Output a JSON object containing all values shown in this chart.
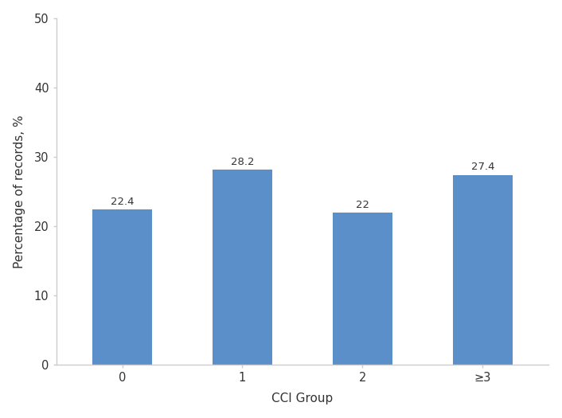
{
  "categories": [
    "0",
    "1",
    "2",
    "≥3"
  ],
  "values": [
    22.4,
    28.2,
    22.0,
    27.4
  ],
  "bar_color": "#5b8fc9",
  "bar_edgecolor": "none",
  "xlabel": "CCI Group",
  "ylabel": "Percentage of records, %",
  "ylim": [
    0,
    50
  ],
  "yticks": [
    0,
    10,
    20,
    30,
    40,
    50
  ],
  "label_fontsize": 11,
  "tick_fontsize": 10.5,
  "value_label_fontsize": 9.5,
  "background_color": "#ffffff",
  "bar_width": 0.5,
  "spine_color": "#cccccc"
}
